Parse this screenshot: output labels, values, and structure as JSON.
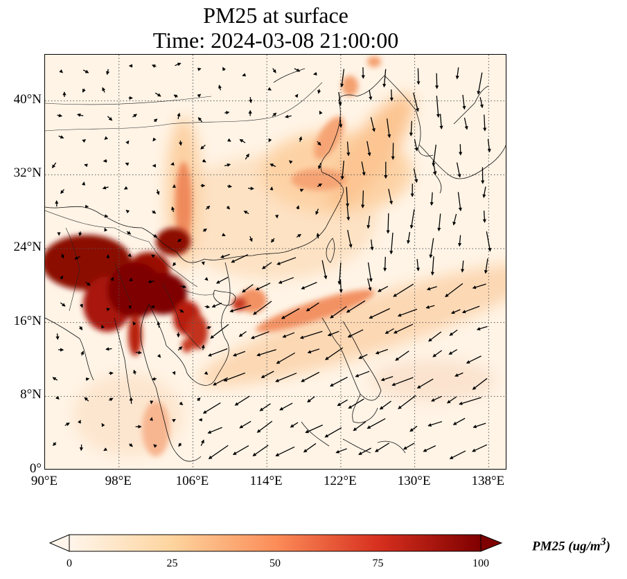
{
  "title": {
    "line1": "PM25 at surface",
    "line2": "Time: 2024-03-08 21:00:00"
  },
  "map": {
    "lon_range": [
      90,
      140
    ],
    "lat_range": [
      0,
      45
    ],
    "lat_ticks": [
      {
        "value": 0,
        "label": "0°"
      },
      {
        "value": 8,
        "label": "8°N"
      },
      {
        "value": 16,
        "label": "16°N"
      },
      {
        "value": 24,
        "label": "24°N"
      },
      {
        "value": 32,
        "label": "32°N"
      },
      {
        "value": 40,
        "label": "40°N"
      }
    ],
    "lon_ticks": [
      {
        "value": 90,
        "label": "90°E"
      },
      {
        "value": 98,
        "label": "98°E"
      },
      {
        "value": 106,
        "label": "106°E"
      },
      {
        "value": 114,
        "label": "114°E"
      },
      {
        "value": 122,
        "label": "122°E"
      },
      {
        "value": 130,
        "label": "130°E"
      },
      {
        "value": 138,
        "label": "138°E"
      }
    ],
    "grid": "dotted",
    "features": [
      "coastlines",
      "country-borders",
      "wind-vectors",
      "pm25-field"
    ]
  },
  "colorbar": {
    "label": "PM25 (ug/m",
    "label_sup": "3",
    "label_close": ")",
    "range": [
      0,
      100
    ],
    "ticks": [
      {
        "value": 0,
        "label": "0"
      },
      {
        "value": 25,
        "label": "25"
      },
      {
        "value": 50,
        "label": "50"
      },
      {
        "value": 75,
        "label": "75"
      },
      {
        "value": 100,
        "label": "100"
      }
    ],
    "colors": [
      "#fff5eb",
      "#fdd49e",
      "#fc8d59",
      "#d7301f",
      "#7f0000"
    ],
    "extend": "both"
  }
}
